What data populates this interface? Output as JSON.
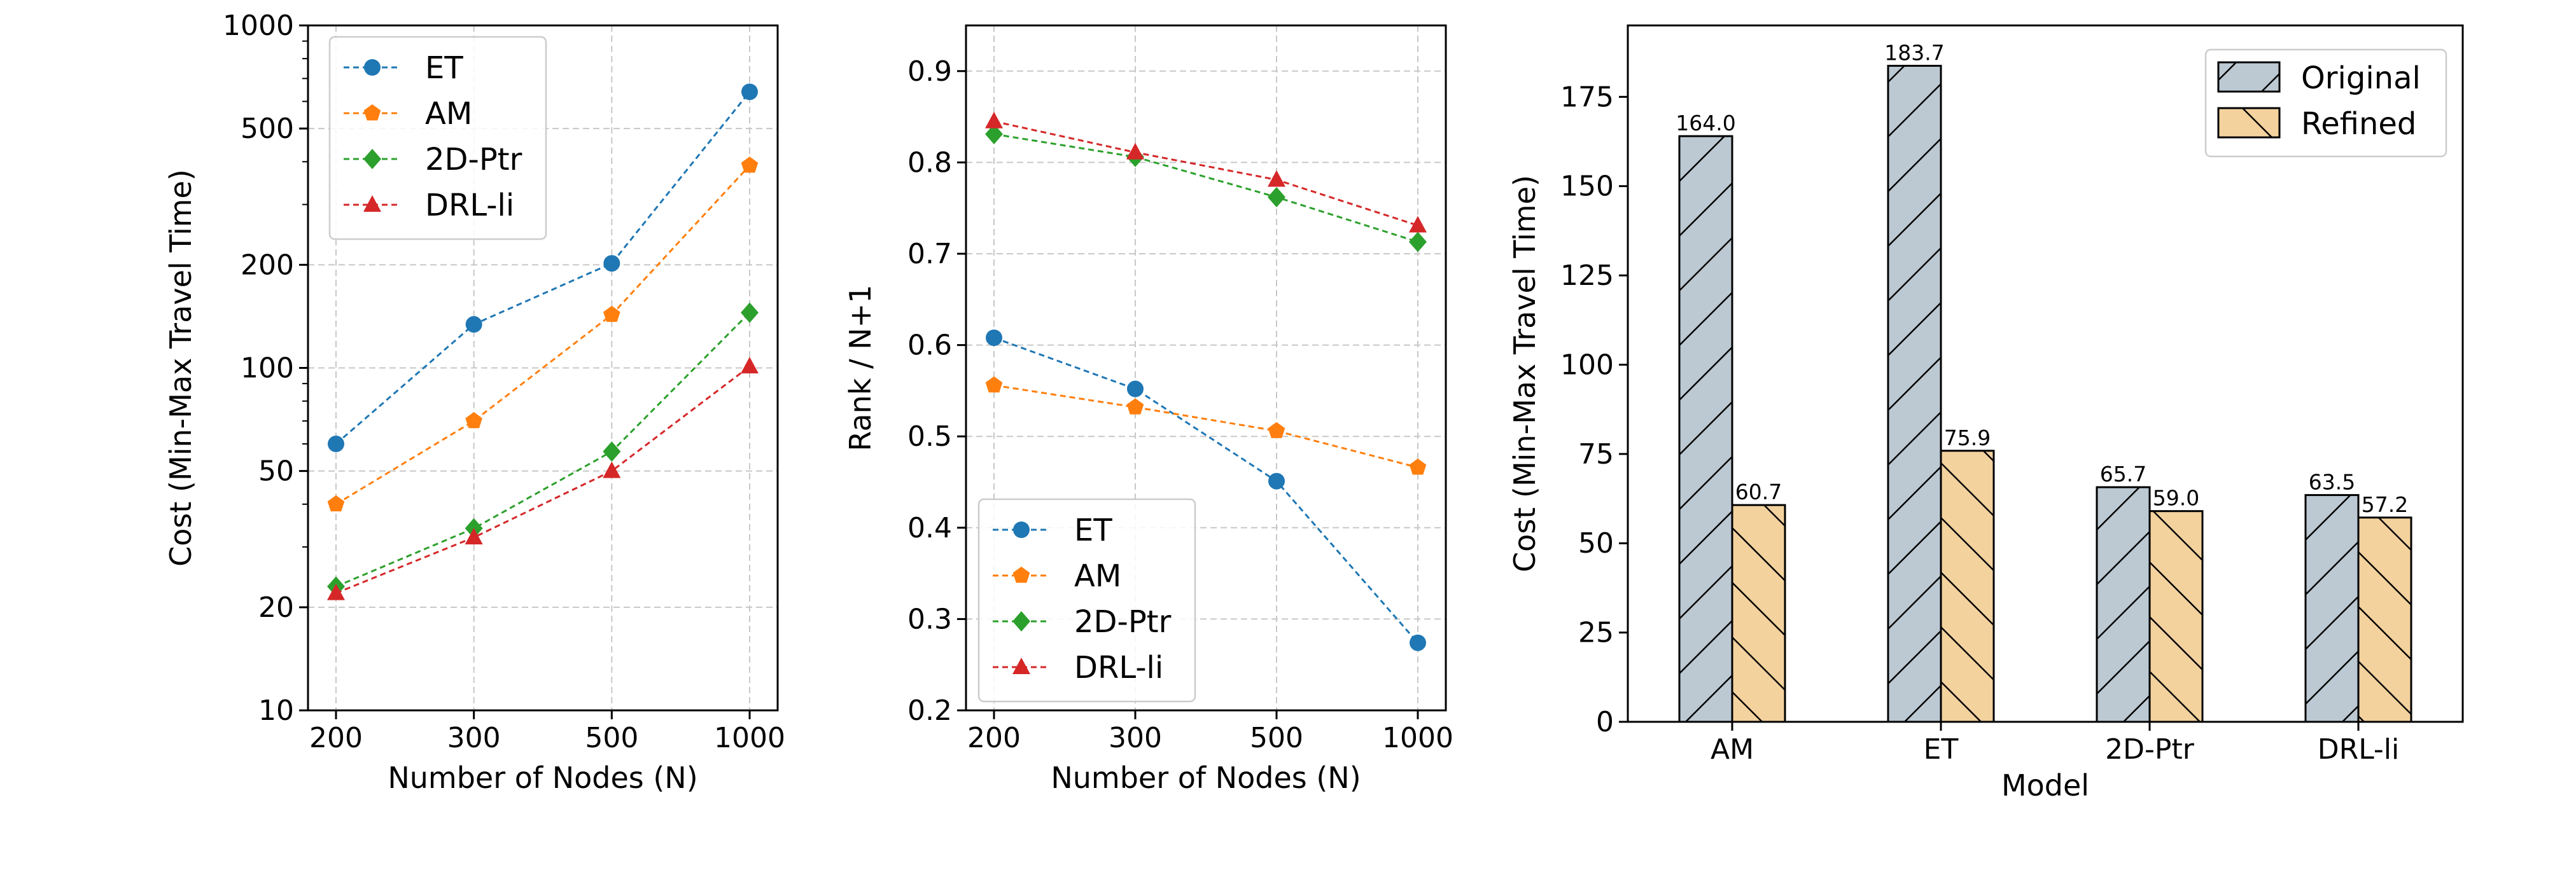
{
  "colors": {
    "ET": "#1f77b4",
    "AM": "#ff7f0e",
    "2D-Ptr": "#2ca02c",
    "DRL-li": "#d62728",
    "original": "#bcc9d3",
    "refined": "#f3d29e"
  },
  "chart_data": [
    {
      "type": "line",
      "scale": "log",
      "x": [
        "200",
        "300",
        "500",
        "1000"
      ],
      "xlabel": "Number of Nodes (N)",
      "ylabel": "Cost (Min-Max Travel Time)",
      "ylim": [
        10,
        1000
      ],
      "yticks": [
        10,
        20,
        50,
        100,
        200,
        500,
        1000
      ],
      "ytick_labels": [
        "10",
        "20",
        "50",
        "100",
        "200",
        "500",
        "1000"
      ],
      "legend_loc": "upper-left",
      "series": [
        {
          "name": "ET",
          "marker": "circle",
          "values": [
            60,
            134,
            202,
            640
          ]
        },
        {
          "name": "AM",
          "marker": "pentagon",
          "values": [
            40,
            70,
            143,
            390
          ]
        },
        {
          "name": "2D-Ptr",
          "marker": "diamond",
          "values": [
            23,
            34,
            57,
            145
          ]
        },
        {
          "name": "DRL-li",
          "marker": "triangle",
          "values": [
            22,
            32,
            50,
            101
          ]
        }
      ]
    },
    {
      "type": "line",
      "scale": "linear",
      "x": [
        "200",
        "300",
        "500",
        "1000"
      ],
      "xlabel": "Number of Nodes (N)",
      "ylabel": "Rank / N+1",
      "ylim": [
        0.2,
        0.95
      ],
      "yticks": [
        0.2,
        0.3,
        0.4,
        0.5,
        0.6,
        0.7,
        0.8,
        0.9
      ],
      "ytick_labels": [
        "0.2",
        "0.3",
        "0.4",
        "0.5",
        "0.6",
        "0.7",
        "0.8",
        "0.9"
      ],
      "legend_loc": "lower-left",
      "series": [
        {
          "name": "ET",
          "marker": "circle",
          "values": [
            0.608,
            0.552,
            0.451,
            0.274
          ]
        },
        {
          "name": "AM",
          "marker": "pentagon",
          "values": [
            0.556,
            0.532,
            0.506,
            0.466
          ]
        },
        {
          "name": "2D-Ptr",
          "marker": "diamond",
          "values": [
            0.831,
            0.806,
            0.762,
            0.713
          ]
        },
        {
          "name": "DRL-li",
          "marker": "triangle",
          "values": [
            0.845,
            0.811,
            0.781,
            0.731
          ]
        }
      ]
    },
    {
      "type": "bar",
      "categories": [
        "AM",
        "ET",
        "2D-Ptr",
        "DRL-li"
      ],
      "xlabel": "Model",
      "ylabel": "Cost (Min-Max Travel Time)",
      "ylim": [
        0,
        195
      ],
      "yticks": [
        0,
        25,
        50,
        75,
        100,
        125,
        150,
        175
      ],
      "ytick_labels": [
        "0",
        "25",
        "50",
        "75",
        "100",
        "125",
        "150",
        "175"
      ],
      "legend_loc": "upper-right",
      "series": [
        {
          "name": "Original",
          "hatch": "forward",
          "values": [
            164.0,
            183.7,
            65.7,
            63.5
          ],
          "labels": [
            "164.0",
            "183.7",
            "65.7",
            "63.5"
          ]
        },
        {
          "name": "Refined",
          "hatch": "backward",
          "values": [
            60.7,
            75.9,
            59.0,
            57.2
          ],
          "labels": [
            "60.7",
            "75.9",
            "59.0",
            "57.2"
          ]
        }
      ]
    }
  ]
}
